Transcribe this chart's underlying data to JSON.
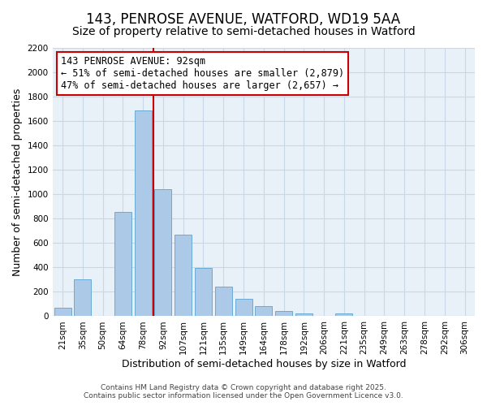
{
  "title": "143, PENROSE AVENUE, WATFORD, WD19 5AA",
  "subtitle": "Size of property relative to semi-detached houses in Watford",
  "xlabel": "Distribution of semi-detached houses by size in Watford",
  "ylabel": "Number of semi-detached properties",
  "bin_labels": [
    "21sqm",
    "35sqm",
    "50sqm",
    "64sqm",
    "78sqm",
    "92sqm",
    "107sqm",
    "121sqm",
    "135sqm",
    "149sqm",
    "164sqm",
    "178sqm",
    "192sqm",
    "206sqm",
    "221sqm",
    "235sqm",
    "249sqm",
    "263sqm",
    "278sqm",
    "292sqm",
    "306sqm"
  ],
  "bin_counts": [
    70,
    305,
    0,
    855,
    1690,
    1040,
    670,
    395,
    245,
    140,
    80,
    40,
    25,
    0,
    20,
    0,
    0,
    0,
    0,
    0,
    5
  ],
  "bar_color": "#adc9e8",
  "bar_edge_color": "#6aaad4",
  "vline_color": "#cc0000",
  "vline_bin_index": 5,
  "annotation_title": "143 PENROSE AVENUE: 92sqm",
  "annotation_line1": "← 51% of semi-detached houses are smaller (2,879)",
  "annotation_line2": "47% of semi-detached houses are larger (2,657) →",
  "annotation_box_color": "#cc0000",
  "ylim": [
    0,
    2200
  ],
  "yticks": [
    0,
    200,
    400,
    600,
    800,
    1000,
    1200,
    1400,
    1600,
    1800,
    2000,
    2200
  ],
  "footer1": "Contains HM Land Registry data © Crown copyright and database right 2025.",
  "footer2": "Contains public sector information licensed under the Open Government Licence v3.0.",
  "bg_color": "#ffffff",
  "plot_bg_color": "#e8f0f8",
  "grid_color": "#c8d8e8",
  "title_fontsize": 12,
  "subtitle_fontsize": 10,
  "axis_label_fontsize": 9,
  "tick_fontsize": 7.5,
  "annotation_fontsize": 8.5,
  "footer_fontsize": 6.5
}
